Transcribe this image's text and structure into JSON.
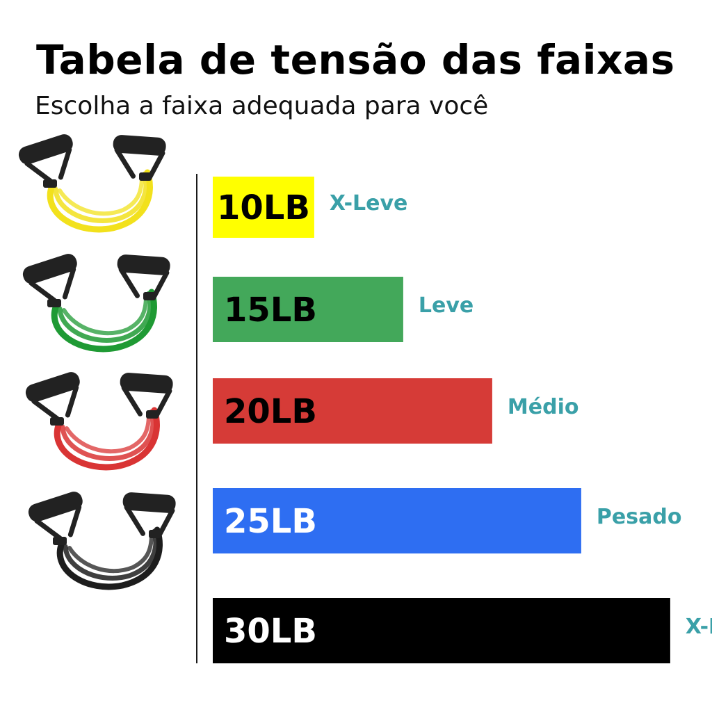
{
  "header": {
    "title": "Tabela de tensão das faixas",
    "subtitle": "Escolha a faixa adequada para você"
  },
  "chart_data": {
    "type": "bar",
    "orientation": "horizontal",
    "categories": [
      "X-Leve",
      "Leve",
      "Médio",
      "Pesado",
      "X-Pesado"
    ],
    "values": [
      10,
      15,
      20,
      25,
      30
    ],
    "value_labels": [
      "10LB",
      "15LB",
      "20LB",
      "25LB",
      "30LB"
    ],
    "unit": "LB",
    "bar_colors": [
      "#ffff00",
      "#43a85a",
      "#d63b37",
      "#2e6ef2",
      "#000000"
    ],
    "value_label_colors": [
      "#000000",
      "#000000",
      "#000000",
      "#ffffff",
      "#ffffff"
    ],
    "category_label_color": "#3aa0a8",
    "grid": false,
    "legend": "none"
  },
  "icons": {
    "band_icons": [
      {
        "name": "yellow-resistance-band-icon",
        "color": "#f2e11c"
      },
      {
        "name": "green-resistance-band-icon",
        "color": "#1f9a34"
      },
      {
        "name": "red-resistance-band-icon",
        "color": "#d93434"
      },
      {
        "name": "black-resistance-band-icon",
        "color": "#1d1d1d"
      }
    ],
    "handle_color": "#222222"
  }
}
